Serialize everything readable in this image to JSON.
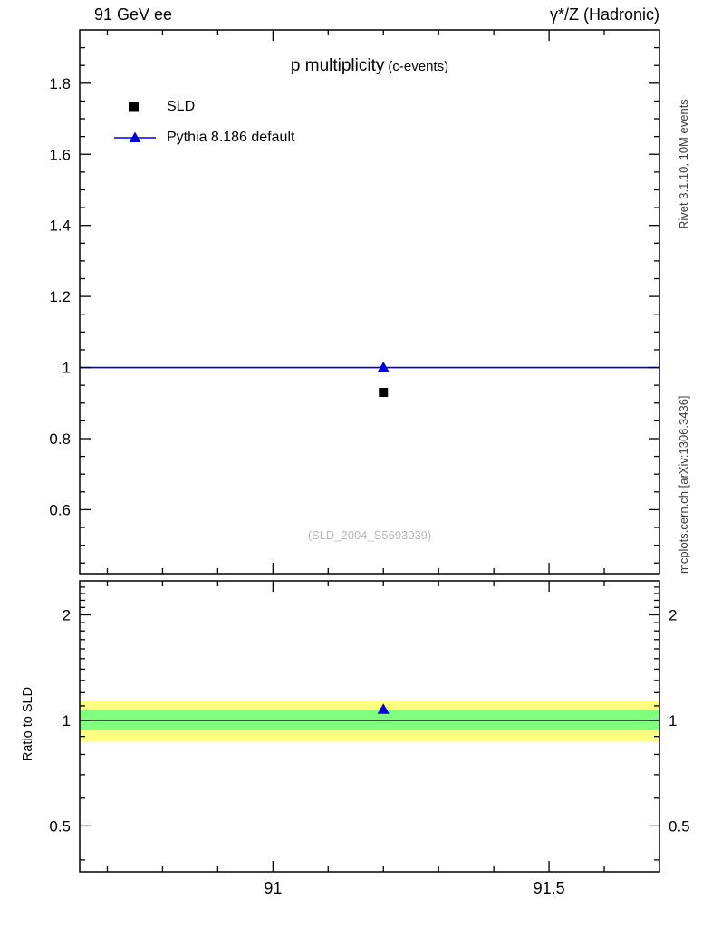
{
  "header": {
    "left": "91 GeV ee",
    "right": "γ*/Z (Hadronic)"
  },
  "main_panel": {
    "title": "p multiplicity",
    "title_note": "(c-events)",
    "watermark": "(SLD_2004_S5693039)",
    "legend": [
      {
        "label": "SLD",
        "marker": "square",
        "color": "#000000"
      },
      {
        "label": "Pythia 8.186 default",
        "marker": "triangle-line",
        "color": "#0000dd"
      }
    ]
  },
  "sidebar": {
    "top_label": "Rivet 3.1.10,  10M events",
    "bottom_label": "mcplots.cern.ch [arXiv:1306.3436]"
  },
  "ratio_panel": {
    "ylabel": "Ratio to SLD"
  },
  "colors": {
    "mc_blue": "#0000dd",
    "data_black": "#000000",
    "band_yellow": "#ffff80",
    "band_green": "#80ff80",
    "watermark_gray": "#b8b8b8",
    "frame": "#000000"
  },
  "chart_data": [
    {
      "type": "scatter",
      "panel": "main",
      "title": "p multiplicity (c-events)",
      "xlabel": "",
      "ylabel": "",
      "xlim": [
        90.65,
        91.7
      ],
      "ylim": [
        0.42,
        1.95
      ],
      "xticks_major": [
        91,
        91.5
      ],
      "xticks_minor_step": 0.1,
      "yticks_major": [
        0.6,
        0.8,
        1.0,
        1.2,
        1.4,
        1.6,
        1.8
      ],
      "yticks_minor_step": 0.05,
      "grid": false,
      "legend_position": "top-left",
      "series": [
        {
          "name": "SLD",
          "marker": "square",
          "color": "#000000",
          "points": [
            {
              "x": 91.2,
              "y": 0.93
            }
          ]
        },
        {
          "name": "Pythia 8.186 default",
          "marker": "triangle",
          "color": "#0000dd",
          "line_y": 1.0,
          "points": [
            {
              "x": 91.2,
              "y": 1.0
            }
          ]
        }
      ]
    },
    {
      "type": "ratio",
      "panel": "ratio",
      "ylabel": "Ratio to SLD",
      "yscale": "log",
      "xlim": [
        90.65,
        91.7
      ],
      "ylim": [
        0.37,
        2.5
      ],
      "yticks_major": [
        0.5,
        1,
        2
      ],
      "yticks_minor": [
        0.4,
        0.6,
        0.7,
        0.8,
        0.9,
        1.1,
        1.2,
        1.3,
        1.4,
        1.5,
        1.6,
        1.7,
        1.8,
        1.9,
        2.1,
        2.2,
        2.3,
        2.4
      ],
      "xticks_major": [
        91,
        91.5
      ],
      "xtick_labels": [
        "91",
        "91.5"
      ],
      "xticks_minor_step": 0.1,
      "reference_line": 1.0,
      "bands": [
        {
          "name": "total-uncertainty",
          "color": "#ffff80",
          "lo": 0.87,
          "hi": 1.14
        },
        {
          "name": "stat-uncertainty",
          "color": "#80ff80",
          "lo": 0.94,
          "hi": 1.07
        }
      ],
      "series": [
        {
          "name": "Pythia 8.186 default",
          "marker": "triangle",
          "color": "#0000dd",
          "points": [
            {
              "x": 91.2,
              "y": 1.075
            }
          ]
        }
      ]
    }
  ]
}
